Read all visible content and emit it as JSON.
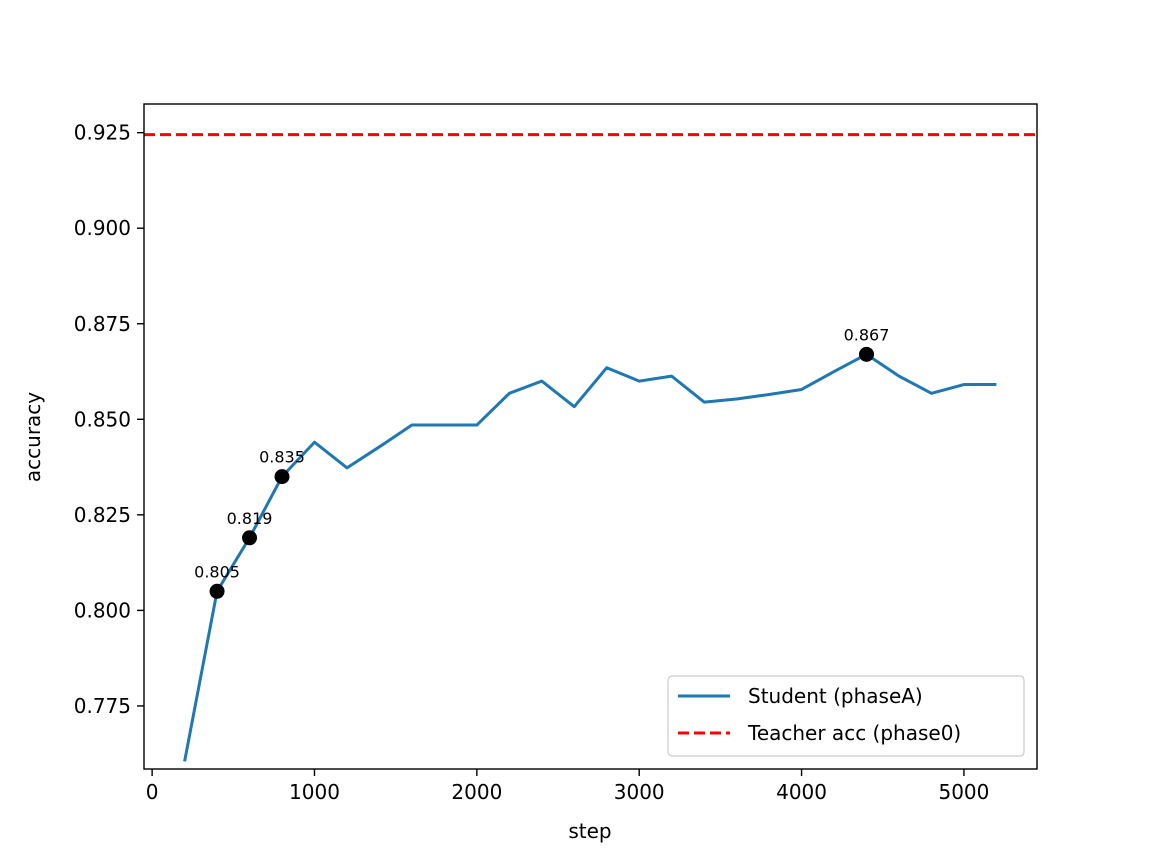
{
  "chart_data": {
    "type": "line",
    "title": "",
    "xlabel": "step",
    "ylabel": "accuracy",
    "xlim": [
      -50,
      5450
    ],
    "ylim": [
      0.7585,
      0.9325
    ],
    "xticks": [
      0,
      1000,
      2000,
      3000,
      4000,
      5000
    ],
    "xtick_labels": [
      "0",
      "1000",
      "2000",
      "3000",
      "4000",
      "5000"
    ],
    "yticks": [
      0.775,
      0.8,
      0.825,
      0.85,
      0.875,
      0.9,
      0.925
    ],
    "ytick_labels": [
      "0.775",
      "0.800",
      "0.825",
      "0.850",
      "0.875",
      "0.900",
      "0.925"
    ],
    "grid": false,
    "legend_position": "lower-right",
    "series": [
      {
        "name": "Student (phaseA)",
        "style": "solid",
        "color": "#1f77b4",
        "x": [
          200,
          400,
          600,
          800,
          1000,
          1200,
          1400,
          1600,
          1800,
          2000,
          2200,
          2400,
          2600,
          2800,
          3000,
          3200,
          3400,
          3600,
          3800,
          4000,
          4200,
          4400,
          4600,
          4800,
          5000,
          5200
        ],
        "y": [
          0.7605,
          0.805,
          0.819,
          0.835,
          0.844,
          0.8373,
          0.8428,
          0.8485,
          0.8485,
          0.8485,
          0.8568,
          0.86,
          0.8533,
          0.8635,
          0.86,
          0.8613,
          0.8545,
          0.8553,
          0.8565,
          0.8578,
          0.8625,
          0.867,
          0.8613,
          0.8568,
          0.8591,
          0.8591
        ]
      },
      {
        "name": "Teacher acc (phase0)",
        "style": "dashed",
        "color": "#ff0000",
        "y_constant": 0.9245
      }
    ],
    "annotations": [
      {
        "x": 400,
        "y": 0.805,
        "label": "0.805"
      },
      {
        "x": 600,
        "y": 0.819,
        "label": "0.819"
      },
      {
        "x": 800,
        "y": 0.835,
        "label": "0.835"
      },
      {
        "x": 4400,
        "y": 0.867,
        "label": "0.867"
      }
    ],
    "marker_color": "#000000"
  }
}
